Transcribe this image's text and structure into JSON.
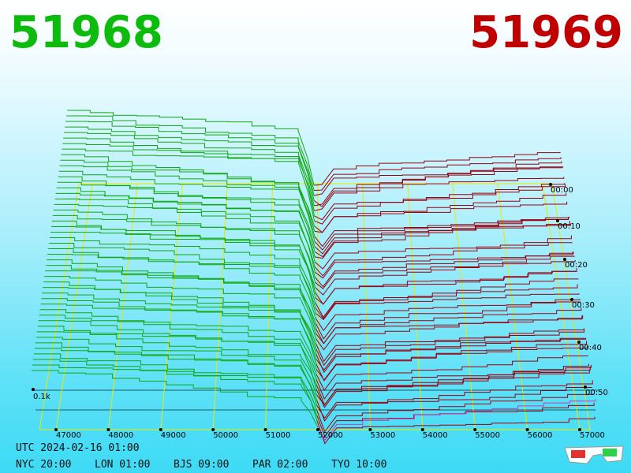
{
  "bid_price": "51968",
  "ask_price": "51969",
  "price_ticks": [
    47000,
    48000,
    49000,
    50000,
    51000,
    52000,
    53000,
    54000,
    55000,
    56000,
    57000
  ],
  "time_ticks": [
    "00:00",
    "00:10",
    "00:20",
    "00:30",
    "00:40",
    "00:50"
  ],
  "volume_label": "0.1k",
  "utc_time": "UTC 2024-02-16 01:00",
  "city_times": [
    "NYC 20:00",
    "LON 01:00",
    "BJS 09:00",
    "PAR 02:00",
    "TYO 10:00"
  ]
}
